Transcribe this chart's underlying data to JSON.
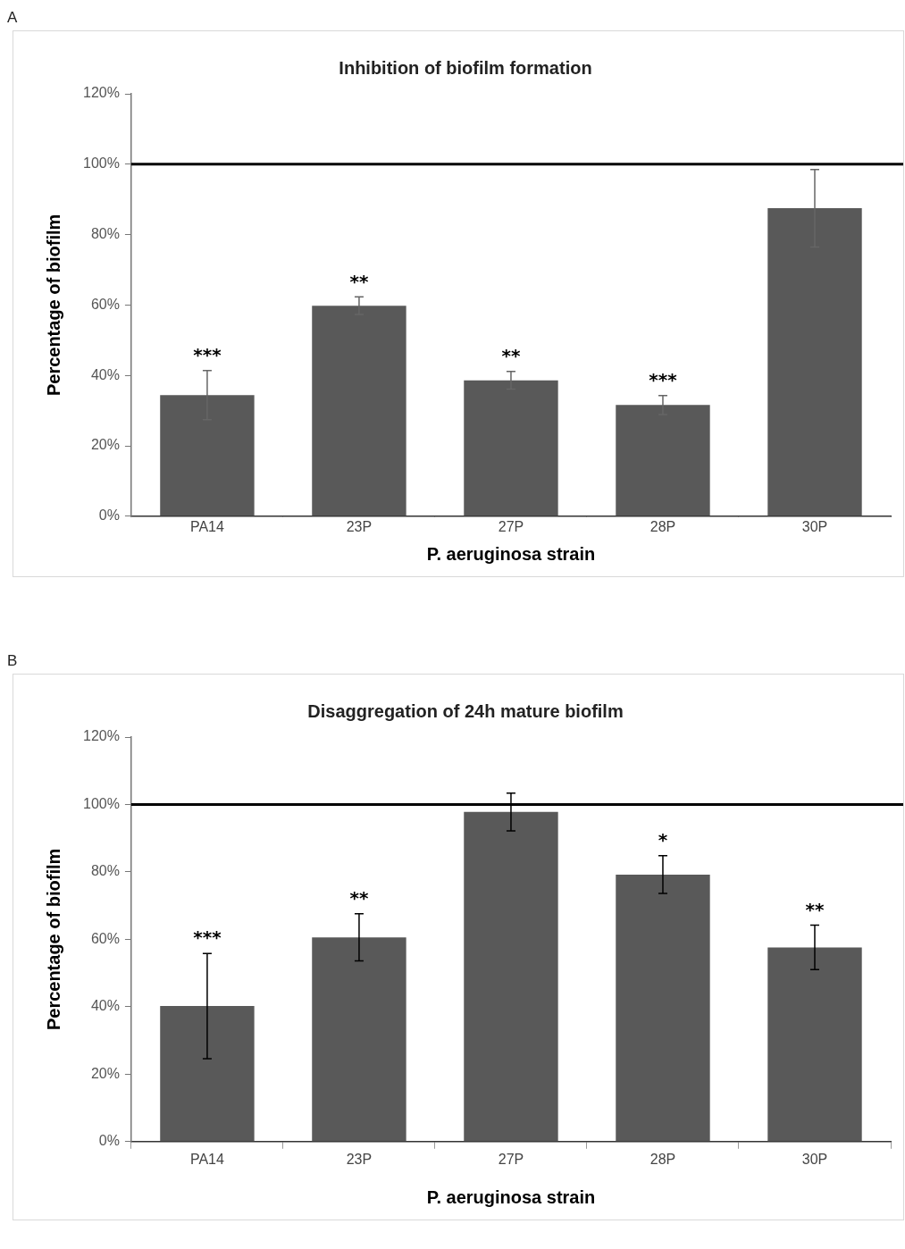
{
  "chart_data": [
    {
      "type": "bar",
      "title": "Inhibition of biofilm formation",
      "xlabel": "P. aeruginosa strain",
      "ylabel": "Percentage of biofilm",
      "categories": [
        "PA14",
        "23P",
        "27P",
        "28P",
        "30P"
      ],
      "values": [
        34.4,
        59.8,
        38.6,
        31.6,
        87.5
      ],
      "errors": [
        7,
        2.5,
        2.5,
        2.7,
        11
      ],
      "color": "#595959",
      "ylim": [
        0,
        120
      ],
      "yticks": [
        {
          "value": 0,
          "label": "0%"
        },
        {
          "value": 20,
          "label": "20%"
        },
        {
          "value": 40,
          "label": "40%"
        },
        {
          "value": 60,
          "label": "60%"
        },
        {
          "value": 80,
          "label": "80%"
        },
        {
          "value": 100,
          "label": "100%"
        },
        {
          "value": 120,
          "label": "120%"
        }
      ],
      "grid": false,
      "legend": false,
      "ref_lines": [
        {
          "axis": "y",
          "value": 100,
          "color": "#000000"
        }
      ],
      "annotations": [
        "A",
        {
          "text": "***",
          "x": "PA14",
          "y": 41.4
        },
        {
          "text": "**",
          "x": "23P",
          "y": 62.3
        },
        {
          "text": "**",
          "x": "27P",
          "y": 41.1
        },
        {
          "text": "***",
          "x": "28P",
          "y": 34.3
        }
      ]
    },
    {
      "type": "bar",
      "title": "Disaggregation of 24h mature biofilm",
      "xlabel": "P. aeruginosa strain",
      "ylabel": "Percentage of biofilm",
      "categories": [
        "PA14",
        "23P",
        "27P",
        "28P",
        "30P"
      ],
      "values": [
        40.2,
        60.6,
        97.8,
        79.2,
        57.6
      ],
      "errors": [
        15.6,
        7,
        5.6,
        5.6,
        6.6
      ],
      "color": "#595959",
      "ylim": [
        0,
        120
      ],
      "yticks": [
        {
          "value": 0,
          "label": "0%"
        },
        {
          "value": 20,
          "label": "20%"
        },
        {
          "value": 40,
          "label": "40%"
        },
        {
          "value": 60,
          "label": "60%"
        },
        {
          "value": 80,
          "label": "80%"
        },
        {
          "value": 100,
          "label": "100%"
        },
        {
          "value": 120,
          "label": "120%"
        }
      ],
      "grid": false,
      "legend": false,
      "ref_lines": [
        {
          "axis": "y",
          "value": 100,
          "color": "#000000"
        }
      ],
      "annotations": [
        "B",
        {
          "text": "***",
          "x": "PA14",
          "y": 55.8
        },
        {
          "text": "**",
          "x": "23P",
          "y": 67.6
        },
        {
          "text": "*",
          "x": "28P",
          "y": 84.8
        },
        {
          "text": "**",
          "x": "30P",
          "y": 64.2
        }
      ]
    }
  ]
}
